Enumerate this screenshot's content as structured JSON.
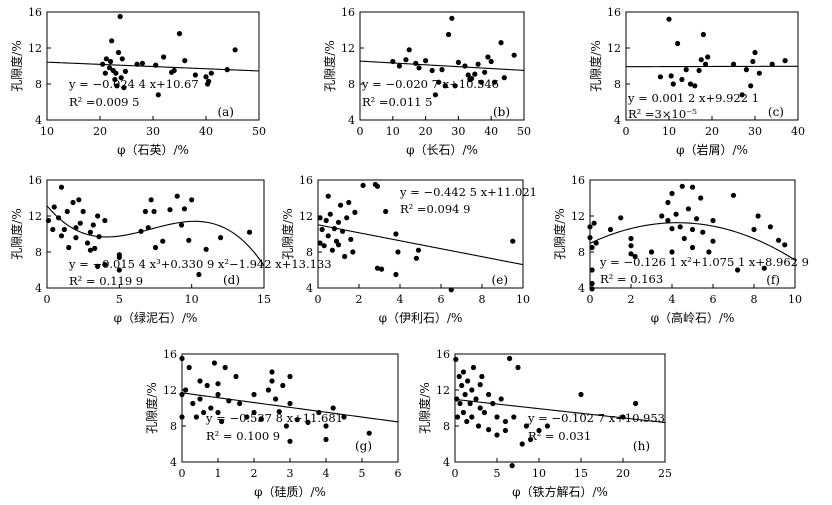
{
  "chart_data": [
    {
      "id": "a",
      "type": "scatter",
      "panel_label": "(a)",
      "xlabel": "φ（石英）/%",
      "ylabel": "孔隙度/%",
      "xlim": [
        10,
        50
      ],
      "ylim": [
        4,
        16
      ],
      "xticks": [
        "10",
        "20",
        "30",
        "40",
        "50"
      ],
      "yticks": [
        "4",
        "8",
        "12",
        "16"
      ],
      "fit": {
        "kind": "poly",
        "coef": [
          10.67,
          -0.0244
        ]
      },
      "equation": "y = −0.024 4 x+10.67",
      "r2_label": "R² =0.009 5",
      "points": [
        [
          20.5,
          10.2
        ],
        [
          21,
          9.2
        ],
        [
          21.2,
          10.8
        ],
        [
          21.8,
          9.8
        ],
        [
          22,
          10.5
        ],
        [
          22.2,
          12.8
        ],
        [
          22.5,
          9.5
        ],
        [
          22.8,
          8.5
        ],
        [
          23,
          9.2
        ],
        [
          23.2,
          7.8
        ],
        [
          23.5,
          11.5
        ],
        [
          23.8,
          15.5
        ],
        [
          24,
          8.7
        ],
        [
          24.2,
          10.8
        ],
        [
          24.5,
          7.6
        ],
        [
          24.8,
          9.4
        ],
        [
          27,
          10.2
        ],
        [
          28,
          10.3
        ],
        [
          30.5,
          10.1
        ],
        [
          31,
          6.8
        ],
        [
          32,
          11
        ],
        [
          33.5,
          9.3
        ],
        [
          34,
          9.5
        ],
        [
          35,
          13.6
        ],
        [
          36,
          10.6
        ],
        [
          38,
          9
        ],
        [
          40,
          8.8
        ],
        [
          40.3,
          8
        ],
        [
          40.5,
          8.3
        ],
        [
          41,
          9.2
        ],
        [
          44,
          9.6
        ],
        [
          45.5,
          11.8
        ]
      ]
    },
    {
      "id": "b",
      "type": "scatter",
      "panel_label": "(b)",
      "xlabel": "φ（长石）/%",
      "ylabel": "孔隙度/%",
      "xlim": [
        0,
        50
      ],
      "ylim": [
        4,
        16
      ],
      "xticks": [
        "0",
        "10",
        "20",
        "30",
        "40",
        "50"
      ],
      "yticks": [
        "4",
        "8",
        "12",
        "16"
      ],
      "fit": {
        "kind": "poly",
        "coef": [
          10.546,
          -0.0207
        ]
      },
      "equation": "y = −0.020 7 x+10.546",
      "r2_label": "R² =0.011 5",
      "points": [
        [
          10,
          10.5
        ],
        [
          12,
          10
        ],
        [
          14,
          10.7
        ],
        [
          15,
          11.8
        ],
        [
          17,
          10.3
        ],
        [
          18,
          9.8
        ],
        [
          20,
          10.6
        ],
        [
          22,
          9.5
        ],
        [
          23,
          6.8
        ],
        [
          24,
          8.2
        ],
        [
          25,
          9.6
        ],
        [
          26,
          7.8
        ],
        [
          27,
          13.5
        ],
        [
          28,
          15.3
        ],
        [
          29,
          7.8
        ],
        [
          30,
          10.4
        ],
        [
          32,
          10
        ],
        [
          33,
          9
        ],
        [
          33.5,
          8.5
        ],
        [
          34,
          8.6
        ],
        [
          35,
          9.1
        ],
        [
          36,
          10.2
        ],
        [
          37,
          8.2
        ],
        [
          38,
          9.3
        ],
        [
          39,
          11
        ],
        [
          40,
          10.5
        ],
        [
          41,
          8.2
        ],
        [
          43,
          12.6
        ],
        [
          44,
          8.7
        ],
        [
          47,
          11.2
        ]
      ]
    },
    {
      "id": "c",
      "type": "scatter",
      "panel_label": "(c)",
      "xlabel": "φ（岩屑）/%",
      "ylabel": "孔隙度/%",
      "xlim": [
        0,
        40
      ],
      "ylim": [
        4,
        16
      ],
      "xticks": [
        "0",
        "10",
        "20",
        "30",
        "40"
      ],
      "yticks": [
        "4",
        "8",
        "12",
        "16"
      ],
      "fit": {
        "kind": "poly",
        "coef": [
          9.9221,
          0.0012
        ]
      },
      "equation": "y = 0.001 2 x+9.922 1",
      "r2_label": "R² =3×10⁻⁵",
      "points": [
        [
          8,
          8.8
        ],
        [
          10,
          15.2
        ],
        [
          10.5,
          8.9
        ],
        [
          11,
          8
        ],
        [
          12,
          12.5
        ],
        [
          13,
          8.5
        ],
        [
          14,
          9.6
        ],
        [
          15,
          8
        ],
        [
          16,
          7.8
        ],
        [
          17,
          9.5
        ],
        [
          17.5,
          10.7
        ],
        [
          18,
          13.5
        ],
        [
          18.5,
          10.2
        ],
        [
          19,
          11
        ],
        [
          25,
          10.2
        ],
        [
          27,
          6.8
        ],
        [
          28,
          9.6
        ],
        [
          29,
          7.8
        ],
        [
          29.5,
          10.5
        ],
        [
          30,
          11.5
        ],
        [
          31,
          9.2
        ],
        [
          34,
          10.2
        ],
        [
          37,
          10.6
        ]
      ]
    },
    {
      "id": "d",
      "type": "scatter",
      "panel_label": "(d)",
      "xlabel": "φ（绿泥石）/%",
      "ylabel": "孔隙度/%",
      "xlim": [
        0,
        15
      ],
      "ylim": [
        4,
        16
      ],
      "xticks": [
        "0",
        "5",
        "10",
        "15"
      ],
      "yticks": [
        "4",
        "8",
        "12",
        "16"
      ],
      "fit": {
        "kind": "poly",
        "coef": [
          13.133,
          -1.942,
          0.3309,
          -0.0154
        ]
      },
      "equation": "y = −0.015 4 x³+0.330 9 x²−1.942 x+13.133",
      "r2_label": "R² = 0.119 9",
      "points": [
        [
          0.1,
          11.5
        ],
        [
          0.4,
          10.5
        ],
        [
          0.5,
          13
        ],
        [
          0.8,
          11.8
        ],
        [
          1,
          15.2
        ],
        [
          1,
          9.8
        ],
        [
          1.2,
          10.5
        ],
        [
          1.4,
          12.5
        ],
        [
          1.5,
          8.5
        ],
        [
          1.8,
          13.5
        ],
        [
          2,
          10.7
        ],
        [
          2,
          9.6
        ],
        [
          2.2,
          13.8
        ],
        [
          2.3,
          11.2
        ],
        [
          2.5,
          12.5
        ],
        [
          2.8,
          9
        ],
        [
          3,
          10.2
        ],
        [
          3,
          8.2
        ],
        [
          3.2,
          11
        ],
        [
          3.3,
          8.4
        ],
        [
          3.5,
          12
        ],
        [
          3.5,
          6.4
        ],
        [
          3.6,
          9.7
        ],
        [
          4,
          11.5
        ],
        [
          4,
          6.6
        ],
        [
          5,
          7.7
        ],
        [
          5,
          7.4
        ],
        [
          5,
          6
        ],
        [
          6.5,
          10.3
        ],
        [
          6.8,
          12.5
        ],
        [
          7,
          10.7
        ],
        [
          7.2,
          13.8
        ],
        [
          7.4,
          12.5
        ],
        [
          7.5,
          8.5
        ],
        [
          8,
          9.2
        ],
        [
          8.5,
          12.7
        ],
        [
          9,
          14.2
        ],
        [
          9.3,
          11
        ],
        [
          9.5,
          12.8
        ],
        [
          9.8,
          9.3
        ],
        [
          10,
          13.8
        ],
        [
          10.5,
          5.5
        ],
        [
          11,
          8.3
        ],
        [
          12,
          9.6
        ],
        [
          14,
          10.2
        ]
      ]
    },
    {
      "id": "e",
      "type": "scatter",
      "panel_label": "(e)",
      "xlabel": "φ（伊利石）/%",
      "ylabel": "孔隙度/%",
      "xlim": [
        0,
        10
      ],
      "ylim": [
        4,
        16
      ],
      "xticks": [
        "0",
        "2",
        "4",
        "6",
        "8",
        "10"
      ],
      "yticks": [
        "4",
        "8",
        "12",
        "16"
      ],
      "fit": {
        "kind": "poly",
        "coef": [
          11.021,
          -0.4425
        ]
      },
      "equation": "y = −0.442 5 x+11.021",
      "r2_label": "R² =0.094 9",
      "points": [
        [
          0.1,
          9
        ],
        [
          0.1,
          11.8
        ],
        [
          0.2,
          10.5
        ],
        [
          0.3,
          8.7
        ],
        [
          0.4,
          11.5
        ],
        [
          0.5,
          14.2
        ],
        [
          0.5,
          9.8
        ],
        [
          0.6,
          12.2
        ],
        [
          0.7,
          8.2
        ],
        [
          0.8,
          10.6
        ],
        [
          0.9,
          9.2
        ],
        [
          1,
          11.3
        ],
        [
          1,
          8.8
        ],
        [
          1.1,
          13.2
        ],
        [
          1.2,
          10.3
        ],
        [
          1.3,
          7.5
        ],
        [
          1.4,
          11.8
        ],
        [
          1.5,
          13.5
        ],
        [
          1.6,
          9.4
        ],
        [
          1.7,
          8
        ],
        [
          1.8,
          12.4
        ],
        [
          2.2,
          15.4
        ],
        [
          2.8,
          15.5
        ],
        [
          2.9,
          15.3
        ],
        [
          2.9,
          6.2
        ],
        [
          3.1,
          6.1
        ],
        [
          3.3,
          12.5
        ],
        [
          3.8,
          10
        ],
        [
          3.8,
          5.5
        ],
        [
          3.9,
          8
        ],
        [
          4.8,
          7.3
        ],
        [
          4.9,
          8.2
        ],
        [
          6.5,
          3.8
        ],
        [
          9.5,
          9.2
        ]
      ]
    },
    {
      "id": "f",
      "type": "scatter",
      "panel_label": "(f)",
      "xlabel": "φ（高岭石）/%",
      "ylabel": "孔隙度/%",
      "xlim": [
        0,
        10
      ],
      "ylim": [
        4,
        16
      ],
      "xticks": [
        "0",
        "2",
        "4",
        "6",
        "8",
        "10"
      ],
      "yticks": [
        "4",
        "8",
        "12",
        "16"
      ],
      "fit": {
        "kind": "poly",
        "coef": [
          8.9629,
          1.0751,
          -0.1261
        ]
      },
      "equation": "y = −0.126 1 x²+1.075 1 x+8.962 9",
      "r2_label": "R² = 0.163",
      "points": [
        [
          0,
          10.8
        ],
        [
          0,
          9.6
        ],
        [
          0.1,
          8.5
        ],
        [
          0.1,
          6
        ],
        [
          0.1,
          4.5
        ],
        [
          0.1,
          3.9
        ],
        [
          0.2,
          11.2
        ],
        [
          0.3,
          9
        ],
        [
          1,
          10.5
        ],
        [
          1.5,
          11.8
        ],
        [
          2,
          9.5
        ],
        [
          2,
          8.7
        ],
        [
          2,
          7.8
        ],
        [
          2.2,
          7.5
        ],
        [
          3,
          8
        ],
        [
          3.5,
          12
        ],
        [
          3.8,
          13.5
        ],
        [
          3.8,
          11.5
        ],
        [
          4,
          14.5
        ],
        [
          4,
          10.6
        ],
        [
          4,
          8
        ],
        [
          4.2,
          12.2
        ],
        [
          4.4,
          10.8
        ],
        [
          4.5,
          15.3
        ],
        [
          4.6,
          9.5
        ],
        [
          4.8,
          12.8
        ],
        [
          5,
          15.2
        ],
        [
          5,
          10.5
        ],
        [
          5,
          8.5
        ],
        [
          5.2,
          11.7
        ],
        [
          5.4,
          14
        ],
        [
          5.5,
          10.2
        ],
        [
          5.8,
          8
        ],
        [
          6,
          11.5
        ],
        [
          6,
          9.2
        ],
        [
          7,
          14.3
        ],
        [
          7.2,
          6
        ],
        [
          8,
          10.5
        ],
        [
          8.2,
          12
        ],
        [
          8.5,
          6.2
        ],
        [
          8.8,
          10.8
        ],
        [
          9.2,
          9.3
        ],
        [
          9.5,
          8.8
        ]
      ]
    },
    {
      "id": "g",
      "type": "scatter",
      "panel_label": "(g)",
      "xlabel": "φ（硅质）/%",
      "ylabel": "孔隙度/%",
      "xlim": [
        0,
        6
      ],
      "ylim": [
        4,
        16
      ],
      "xticks": [
        "0",
        "1",
        "2",
        "3",
        "4",
        "5",
        "6"
      ],
      "yticks": [
        "4",
        "8",
        "12",
        "16"
      ],
      "fit": {
        "kind": "poly",
        "coef": [
          11.681,
          -0.5378
        ]
      },
      "equation": "y = −0.537 8 x+11.681",
      "r2_label": "R² = 0.100 9",
      "points": [
        [
          0,
          15.5
        ],
        [
          0,
          11.5
        ],
        [
          0,
          9
        ],
        [
          0.1,
          12
        ],
        [
          0.2,
          14.5
        ],
        [
          0.3,
          10.5
        ],
        [
          0.4,
          9
        ],
        [
          0.5,
          13
        ],
        [
          0.5,
          11
        ],
        [
          0.6,
          9.5
        ],
        [
          0.7,
          12.5
        ],
        [
          0.8,
          10
        ],
        [
          0.9,
          15
        ],
        [
          1,
          12.7
        ],
        [
          1,
          11.5
        ],
        [
          1,
          9.5
        ],
        [
          1.1,
          8.5
        ],
        [
          1.2,
          14.5
        ],
        [
          1.3,
          10.8
        ],
        [
          1.5,
          13.5
        ],
        [
          1.6,
          10.5
        ],
        [
          1.8,
          9
        ],
        [
          2,
          11.5
        ],
        [
          2,
          9.5
        ],
        [
          2.2,
          8.8
        ],
        [
          2.4,
          12
        ],
        [
          2.5,
          14
        ],
        [
          2.5,
          13
        ],
        [
          2.6,
          11
        ],
        [
          2.7,
          9.6
        ],
        [
          2.8,
          12.5
        ],
        [
          2.9,
          8
        ],
        [
          3,
          13.5
        ],
        [
          3,
          10.5
        ],
        [
          3,
          6.3
        ],
        [
          3.2,
          8.7
        ],
        [
          3.5,
          8.4
        ],
        [
          3.8,
          9.5
        ],
        [
          4,
          8
        ],
        [
          4,
          6.5
        ],
        [
          4.2,
          10
        ],
        [
          4.5,
          9
        ],
        [
          5.2,
          7.2
        ]
      ]
    },
    {
      "id": "h",
      "type": "scatter",
      "panel_label": "(h)",
      "xlabel": "φ（铁方解石）/%",
      "ylabel": "孔隙度/%",
      "xlim": [
        0,
        25
      ],
      "ylim": [
        4,
        16
      ],
      "xticks": [
        "0",
        "5",
        "10",
        "15",
        "20",
        "25"
      ],
      "yticks": [
        "4",
        "8",
        "12",
        "16"
      ],
      "fit": {
        "kind": "poly",
        "coef": [
          10.953,
          -0.1027
        ]
      },
      "equation": "y = −0.102 7 x+10.953",
      "r2_label": "R² = 0.031",
      "points": [
        [
          0.1,
          15.4
        ],
        [
          0.2,
          11
        ],
        [
          0.3,
          9
        ],
        [
          0.5,
          13.5
        ],
        [
          0.6,
          10.5
        ],
        [
          0.8,
          12.5
        ],
        [
          1,
          14
        ],
        [
          1,
          9.5
        ],
        [
          1.2,
          11.5
        ],
        [
          1.4,
          8.5
        ],
        [
          1.5,
          13
        ],
        [
          1.8,
          10.5
        ],
        [
          2,
          12
        ],
        [
          2,
          9
        ],
        [
          2.2,
          14.5
        ],
        [
          2.5,
          11
        ],
        [
          2.8,
          8
        ],
        [
          3,
          12.6
        ],
        [
          3,
          10
        ],
        [
          3.2,
          13.5
        ],
        [
          3.5,
          9.5
        ],
        [
          4,
          11.5
        ],
        [
          4,
          7.6
        ],
        [
          4.5,
          10.5
        ],
        [
          5,
          9
        ],
        [
          5,
          7
        ],
        [
          5.5,
          11
        ],
        [
          6,
          8.5
        ],
        [
          6,
          7.5
        ],
        [
          6.5,
          15.5
        ],
        [
          6.8,
          3.6
        ],
        [
          7,
          9
        ],
        [
          7.5,
          14.5
        ],
        [
          8,
          6
        ],
        [
          8.5,
          8
        ],
        [
          9,
          6.5
        ],
        [
          10,
          7.5
        ],
        [
          11,
          8
        ],
        [
          15,
          11.5
        ],
        [
          20,
          9
        ],
        [
          21.5,
          10.5
        ]
      ]
    }
  ]
}
